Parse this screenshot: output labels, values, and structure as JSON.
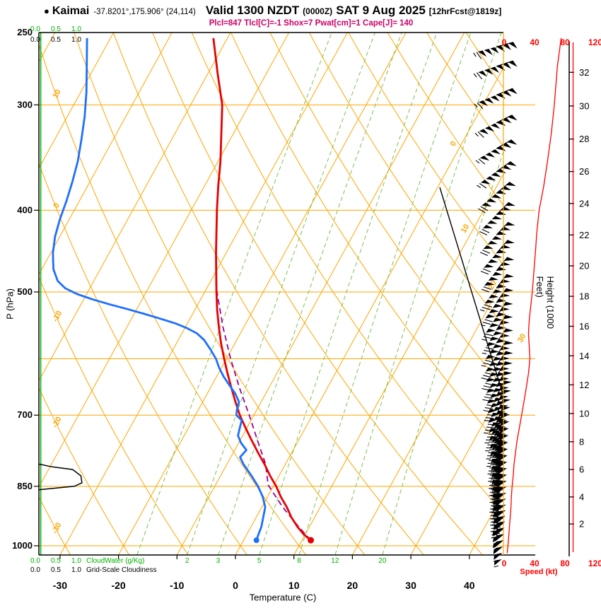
{
  "header": {
    "bullet": "●",
    "station": "Kaimai",
    "coords": "-37.8201°,175.906° (24,114)",
    "valid1": "Valid 1300 NZDT",
    "valid_small": "(0000Z)",
    "valid2": "SAT 9 Aug 2025",
    "fcst_tag": "[12hrFcst@1819z]"
  },
  "indices_line": "Plcl=847 Tlcl[C]=-1 Shox=7 Pwat[cm]=1 Cape[J]= 140",
  "axis_titles": {
    "pressure": "P (hPa)",
    "temperature": "Temperature (C)",
    "height": "Height (1000 Feet)",
    "speed": "Speed (kt)",
    "cloudwater": "CloudWater (g/Kg)",
    "cloudiness": "Grid-Scale Cloudiness"
  },
  "colors": {
    "grid": "#FFA500",
    "mixing_line": "#7CC24E",
    "green_text": "#00B200",
    "temperature": "#E80000",
    "dewpoint": "#1E6FFF",
    "parcel": "#990099",
    "speed": "#FF0000",
    "magenta": "#CC0066",
    "black": "#000000"
  },
  "chart_data": {
    "type": "line",
    "subtype": "skewt_log_p_sounding",
    "title": "Kaimai sounding valid 1300 NZDT (0000Z) SAT 9 Aug 2025, 12hr forecast",
    "pressure_axis": {
      "label": "P (hPa)",
      "scale": "log",
      "range": [
        1025,
        246
      ],
      "ticks": [
        250,
        300,
        400,
        500,
        700,
        850,
        1000
      ]
    },
    "temperature_axis": {
      "label": "Temperature (C)",
      "ticks": [
        -30,
        -20,
        -10,
        0,
        10,
        20,
        30,
        40
      ]
    },
    "height_axis": {
      "label": "Height (1000 Feet)",
      "ticks": [
        2,
        4,
        6,
        8,
        10,
        12,
        14,
        16,
        18,
        20,
        22,
        24,
        26,
        28,
        30,
        32
      ]
    },
    "speed_axis": {
      "label": "Speed (kt)",
      "ticks": [
        0,
        40,
        80,
        120
      ]
    },
    "cloud_axis": {
      "ticks": [
        "0.0",
        "0.5",
        "1.0"
      ]
    },
    "background": {
      "isobar_lines": [
        300,
        400,
        500,
        600,
        700,
        850,
        1000
      ],
      "isotherm_lines": [
        -100,
        -90,
        -80,
        -70,
        -60,
        -50,
        -40,
        -30,
        -20,
        -10,
        0,
        10,
        20,
        30,
        40
      ],
      "isotherm_diag_labels": [
        0,
        10,
        20,
        30
      ],
      "dry_adiabat_lines": [
        -30,
        -20,
        -10,
        0,
        10,
        20,
        30,
        40,
        50,
        60,
        70,
        80,
        90,
        100,
        110,
        120,
        130
      ],
      "dry_adiabat_labels": [
        10,
        0,
        -10,
        -20,
        -30
      ],
      "mixing_ratio_lines_gkg": [
        1,
        2,
        3,
        5,
        8,
        12,
        20
      ],
      "mixing_ratio_labels": [
        "2",
        "3",
        "5",
        "8",
        "12",
        "20"
      ]
    },
    "temperature_profile": {
      "pressure_hpa": [
        985,
        970,
        950,
        925,
        900,
        875,
        850,
        825,
        800,
        775,
        750,
        725,
        700,
        675,
        650,
        625,
        600,
        575,
        550,
        525,
        500,
        475,
        450,
        425,
        400,
        375,
        350,
        325,
        300,
        275,
        250
      ],
      "temp_c": [
        11.5,
        9.8,
        8.0,
        6.0,
        4.3,
        2.3,
        0.5,
        -1.6,
        -3.6,
        -5.8,
        -8.0,
        -10.2,
        -12.4,
        -14.4,
        -16.4,
        -18.4,
        -20.4,
        -22.4,
        -24.3,
        -26.2,
        -28.0,
        -29.8,
        -31.7,
        -33.6,
        -35.6,
        -37.6,
        -39.6,
        -42.0,
        -44.6,
        -48.4,
        -52.4
      ]
    },
    "dewpoint_profile": {
      "pressure_hpa": [
        985,
        970,
        950,
        925,
        900,
        875,
        850,
        825,
        800,
        785,
        770,
        755,
        740,
        725,
        710,
        700,
        690,
        675,
        660,
        645,
        630,
        615,
        600,
        585,
        570,
        560,
        552,
        545,
        538,
        531,
        524,
        517,
        510,
        503,
        495,
        485,
        470,
        450,
        430,
        410,
        390,
        370,
        350,
        330,
        310,
        290,
        270,
        250
      ],
      "temp_c": [
        2.2,
        2.0,
        1.8,
        1.2,
        0.6,
        -0.8,
        -2.6,
        -4.8,
        -7.2,
        -8.4,
        -8.0,
        -9.6,
        -10.8,
        -11.2,
        -11.6,
        -13.0,
        -13.4,
        -13.8,
        -15.2,
        -17.0,
        -18.8,
        -20.4,
        -21.8,
        -23.6,
        -25.6,
        -27.4,
        -29.6,
        -32.0,
        -35.0,
        -38.2,
        -41.6,
        -45.2,
        -48.6,
        -51.6,
        -54.2,
        -56.2,
        -58.0,
        -59.6,
        -60.8,
        -61.6,
        -62.2,
        -63.0,
        -64.0,
        -65.4,
        -67.0,
        -69.0,
        -71.4,
        -74.0
      ]
    },
    "parcel_profile": {
      "pressure_hpa": [
        985,
        950,
        900,
        847,
        800,
        750,
        700,
        650,
        600,
        550,
        500,
        488
      ],
      "temp_c": [
        11.5,
        8.2,
        3.6,
        -1.0,
        -3.4,
        -7.0,
        -10.8,
        -15.0,
        -19.3,
        -23.6,
        -27.9,
        -28.9
      ]
    },
    "wind_speed_profile": {
      "pressure_hpa": [
        1020,
        1000,
        975,
        950,
        925,
        900,
        875,
        850,
        825,
        800,
        775,
        750,
        725,
        700,
        675,
        650,
        625,
        600,
        580,
        560,
        540,
        520,
        500,
        475,
        450,
        425,
        400,
        375,
        350,
        325,
        300,
        285,
        270,
        258,
        250
      ],
      "speed_kt": [
        4,
        5,
        6,
        7,
        8,
        9,
        9.5,
        10.5,
        12,
        13,
        15,
        17,
        20,
        23,
        26,
        29,
        32,
        34,
        33,
        32,
        33,
        35,
        37,
        39,
        41,
        43,
        46,
        52,
        57,
        62,
        66,
        68,
        70,
        73,
        75
      ]
    },
    "wind_barbs": [
      [
        985,
        5,
        355
      ],
      [
        970,
        6,
        353
      ],
      [
        955,
        7,
        352
      ],
      [
        940,
        8,
        350
      ],
      [
        925,
        8,
        349
      ],
      [
        910,
        9,
        348
      ],
      [
        895,
        9,
        347
      ],
      [
        880,
        10,
        346
      ],
      [
        865,
        11,
        345
      ],
      [
        850,
        11,
        344
      ],
      [
        835,
        12,
        343
      ],
      [
        820,
        13,
        342
      ],
      [
        805,
        14,
        341
      ],
      [
        790,
        15,
        340
      ],
      [
        775,
        16,
        339
      ],
      [
        760,
        17,
        338
      ],
      [
        745,
        19,
        337
      ],
      [
        730,
        20,
        336
      ],
      [
        715,
        22,
        335
      ],
      [
        700,
        23,
        334
      ],
      [
        682,
        25,
        333
      ],
      [
        665,
        27,
        332
      ],
      [
        648,
        29,
        331
      ],
      [
        630,
        31,
        330
      ],
      [
        612,
        33,
        329
      ],
      [
        595,
        34,
        328
      ],
      [
        575,
        34,
        327
      ],
      [
        555,
        32,
        326
      ],
      [
        535,
        33,
        325
      ],
      [
        515,
        35,
        324
      ],
      [
        495,
        37,
        323
      ],
      [
        472,
        39,
        322
      ],
      [
        450,
        41,
        321
      ],
      [
        428,
        43,
        320
      ],
      [
        405,
        45,
        319
      ],
      [
        382,
        50,
        318
      ],
      [
        360,
        55,
        317
      ],
      [
        338,
        60,
        316
      ],
      [
        315,
        64,
        316
      ],
      [
        292,
        68,
        315
      ],
      [
        270,
        72,
        315
      ],
      [
        256,
        75,
        315
      ]
    ],
    "cloudiness_profile": {
      "pressure_hpa": [
        858,
        850,
        842,
        826,
        812,
        806,
        800
      ],
      "value": [
        0,
        0.95,
        1.15,
        1.12,
        0.9,
        0.35,
        0
      ]
    },
    "cloudwater_constant_gkg": 0.05,
    "surface_markers": {
      "temperature": {
        "pressure_hpa": 985,
        "temp_c": 11.5
      },
      "dewpoint": {
        "pressure_hpa": 985,
        "temp_c": 2.2
      }
    }
  }
}
